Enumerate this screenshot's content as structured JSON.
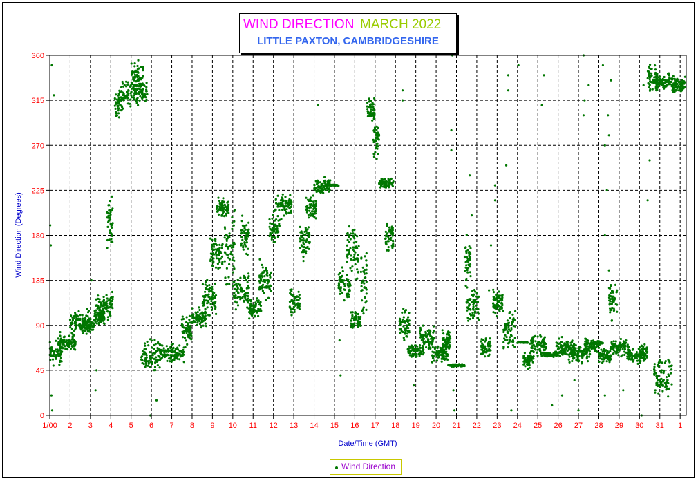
{
  "colors": {
    "title_main": "#ff00ff",
    "title_month": "#99cc00",
    "title_sub": "#3366ee",
    "tick_labels": "#ff0000",
    "axis_labels": "#0000cc",
    "series": "#007700",
    "legend_text": "#9900cc",
    "grid": "#000000"
  },
  "header": {
    "title": "WIND DIRECTION",
    "month": "MARCH 2022",
    "subtitle": "LITTLE PAXTON, CAMBRIDGESHIRE"
  },
  "legend": {
    "label": "Wind Direction"
  },
  "chart_data": {
    "type": "scatter",
    "title": "WIND DIRECTION MARCH 2022",
    "subtitle": "LITTLE PAXTON, CAMBRIDGESHIRE",
    "xlabel": "Date/Time (GMT)",
    "ylabel": "Wind Direction (Degrees)",
    "ylim": [
      0,
      360
    ],
    "xlim": [
      1,
      32.3
    ],
    "yticks": [
      0,
      45,
      90,
      135,
      180,
      225,
      270,
      315,
      360
    ],
    "xtick_labels": [
      "1/00",
      "2",
      "3",
      "4",
      "5",
      "6",
      "7",
      "8",
      "9",
      "10",
      "11",
      "12",
      "13",
      "14",
      "15",
      "16",
      "17",
      "18",
      "19",
      "20",
      "21",
      "22",
      "23",
      "24",
      "25",
      "26",
      "27",
      "28",
      "29",
      "30",
      "31",
      "1"
    ],
    "grid": true,
    "legend_position": "bottom-center",
    "series": [
      {
        "name": "Wind Direction",
        "x_unit": "day of month",
        "clusters": [
          [
            1.0,
            1.6,
            45,
            80
          ],
          [
            1.4,
            2.3,
            60,
            85
          ],
          [
            2.0,
            3.0,
            75,
            110
          ],
          [
            2.6,
            3.2,
            80,
            100
          ],
          [
            3.2,
            3.6,
            85,
            125
          ],
          [
            3.4,
            3.7,
            90,
            105
          ],
          [
            3.6,
            4.1,
            90,
            130
          ],
          [
            3.8,
            4.1,
            160,
            230
          ],
          [
            4.2,
            4.6,
            290,
            335
          ],
          [
            4.5,
            5.8,
            305,
            340
          ],
          [
            5.0,
            5.6,
            320,
            355
          ],
          [
            5.5,
            6.5,
            40,
            80
          ],
          [
            6.4,
            7.6,
            50,
            75
          ],
          [
            7.5,
            8.0,
            65,
            105
          ],
          [
            8.0,
            8.7,
            85,
            110
          ],
          [
            8.5,
            9.2,
            95,
            140
          ],
          [
            8.9,
            9.5,
            140,
            185
          ],
          [
            9.2,
            9.8,
            195,
            220
          ],
          [
            9.6,
            10.1,
            120,
            215
          ],
          [
            10.0,
            10.8,
            100,
            150
          ],
          [
            10.4,
            10.8,
            155,
            205
          ],
          [
            10.8,
            11.4,
            95,
            120
          ],
          [
            11.3,
            11.9,
            110,
            160
          ],
          [
            11.8,
            12.3,
            165,
            210
          ],
          [
            12.1,
            12.9,
            195,
            225
          ],
          [
            12.8,
            13.3,
            95,
            130
          ],
          [
            13.3,
            13.8,
            150,
            200
          ],
          [
            13.6,
            14.1,
            190,
            225
          ],
          [
            14.0,
            14.8,
            220,
            240
          ],
          [
            15.2,
            15.8,
            110,
            150
          ],
          [
            15.6,
            16.2,
            130,
            200
          ],
          [
            15.8,
            16.3,
            80,
            110
          ],
          [
            16.3,
            16.6,
            90,
            180
          ],
          [
            16.6,
            17.0,
            290,
            320
          ],
          [
            16.9,
            17.2,
            250,
            300
          ],
          [
            17.2,
            17.9,
            225,
            240
          ],
          [
            17.5,
            17.9,
            160,
            200
          ],
          [
            18.2,
            18.7,
            70,
            110
          ],
          [
            18.6,
            19.4,
            55,
            75
          ],
          [
            19.2,
            19.9,
            60,
            95
          ],
          [
            19.8,
            20.6,
            50,
            75
          ],
          [
            20.3,
            20.7,
            60,
            90
          ],
          [
            20.7,
            21.3,
            48,
            52
          ],
          [
            21.4,
            21.7,
            120,
            190
          ],
          [
            21.5,
            22.1,
            90,
            130
          ],
          [
            22.2,
            22.7,
            55,
            80
          ],
          [
            22.8,
            23.3,
            95,
            130
          ],
          [
            23.3,
            23.9,
            55,
            110
          ],
          [
            24.3,
            24.8,
            45,
            65
          ],
          [
            24.6,
            25.4,
            55,
            85
          ],
          [
            25.3,
            26.0,
            58,
            64
          ],
          [
            25.9,
            26.8,
            55,
            80
          ],
          [
            26.5,
            27.6,
            50,
            75
          ],
          [
            27.3,
            28.1,
            60,
            80
          ],
          [
            28.0,
            28.6,
            50,
            70
          ],
          [
            28.5,
            28.9,
            90,
            140
          ],
          [
            28.6,
            29.5,
            55,
            80
          ],
          [
            29.4,
            30.3,
            50,
            70
          ],
          [
            30.0,
            30.4,
            50,
            75
          ],
          [
            30.4,
            30.9,
            320,
            355
          ],
          [
            30.8,
            31.8,
            320,
            345
          ],
          [
            31.6,
            32.3,
            320,
            340
          ],
          [
            30.7,
            31.6,
            10,
            70
          ]
        ],
        "lines": [
          [
            14.6,
            15.2,
            230
          ],
          [
            20.6,
            21.4,
            50
          ],
          [
            24.0,
            24.5,
            73
          ],
          [
            27.6,
            28.2,
            72
          ]
        ],
        "scattered": [
          [
            1.02,
            190
          ],
          [
            1.05,
            170
          ],
          [
            1.1,
            350
          ],
          [
            1.2,
            320
          ],
          [
            1.12,
            5
          ],
          [
            1.08,
            20
          ],
          [
            3.3,
            45
          ],
          [
            3.25,
            25
          ],
          [
            3.05,
            135
          ],
          [
            5.35,
            355
          ],
          [
            5.95,
            0
          ],
          [
            6.25,
            15
          ],
          [
            14.2,
            310
          ],
          [
            15.3,
            40
          ],
          [
            15.25,
            75
          ],
          [
            18.35,
            325
          ],
          [
            18.35,
            315
          ],
          [
            20.8,
            360
          ],
          [
            20.75,
            285
          ],
          [
            20.75,
            265
          ],
          [
            20.9,
            5
          ],
          [
            20.85,
            25
          ],
          [
            21.65,
            240
          ],
          [
            21.75,
            200
          ],
          [
            22.7,
            170
          ],
          [
            22.6,
            125
          ],
          [
            22.9,
            230
          ],
          [
            22.9,
            215
          ],
          [
            23.45,
            250
          ],
          [
            23.55,
            340
          ],
          [
            23.55,
            325
          ],
          [
            23.7,
            5
          ],
          [
            24.05,
            350
          ],
          [
            25.3,
            340
          ],
          [
            25.2,
            310
          ],
          [
            26.2,
            20
          ],
          [
            27.25,
            360
          ],
          [
            27.3,
            315
          ],
          [
            27.25,
            300
          ],
          [
            27.5,
            330
          ],
          [
            28.2,
            350
          ],
          [
            28.3,
            270
          ],
          [
            28.5,
            280
          ],
          [
            28.4,
            225
          ],
          [
            28.3,
            180
          ],
          [
            28.45,
            300
          ],
          [
            28.3,
            20
          ],
          [
            28.6,
            335
          ],
          [
            28.5,
            145
          ],
          [
            30.1,
            0
          ],
          [
            30.4,
            215
          ],
          [
            30.5,
            255
          ],
          [
            30.2,
            330
          ],
          [
            29.2,
            25
          ],
          [
            27.0,
            5
          ],
          [
            26.8,
            35
          ],
          [
            25.7,
            10
          ],
          [
            18.9,
            30
          ]
        ]
      }
    ]
  }
}
